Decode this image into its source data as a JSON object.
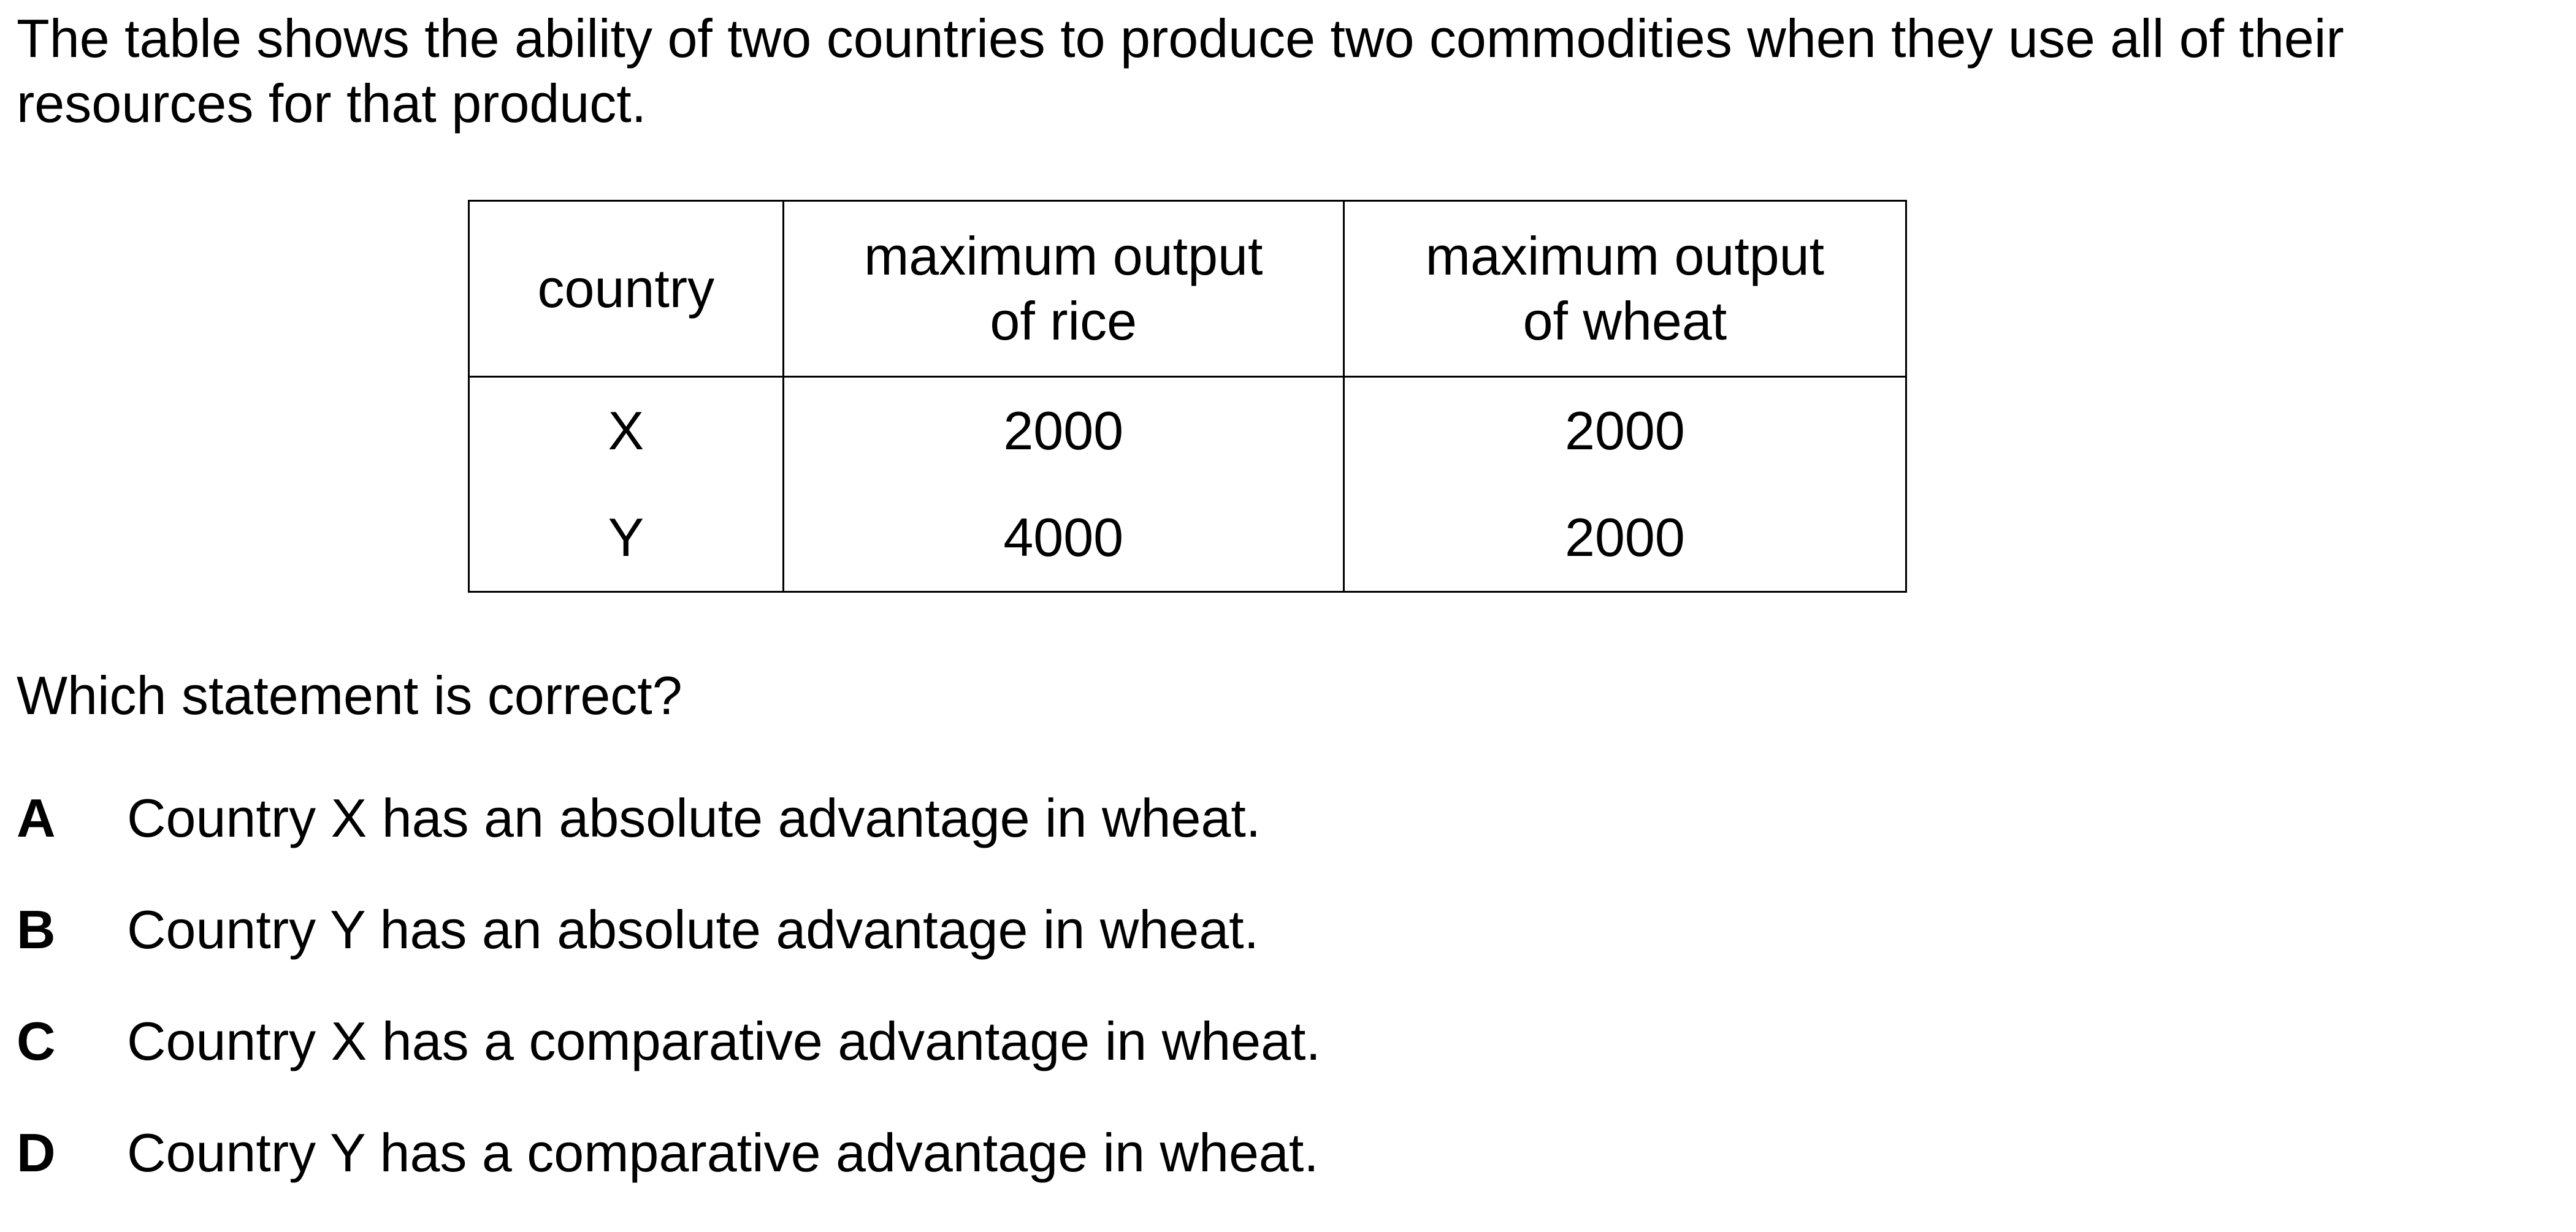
{
  "intro_text": "The table shows the ability of two countries to produce two commodities when they use all of their resources for that product.",
  "table": {
    "headers": {
      "country": "country",
      "rice_line1": "maximum output",
      "rice_line2": "of rice",
      "wheat_line1": "maximum output",
      "wheat_line2": "of wheat"
    },
    "rows": [
      {
        "country": "X",
        "rice": "2000",
        "wheat": "2000"
      },
      {
        "country": "Y",
        "rice": "4000",
        "wheat": "2000"
      }
    ]
  },
  "question": "Which statement is correct?",
  "options": [
    {
      "letter": "A",
      "text": "Country X has an absolute advantage in wheat."
    },
    {
      "letter": "B",
      "text": "Country Y has an absolute advantage in wheat."
    },
    {
      "letter": "C",
      "text": "Country X has a comparative advantage in wheat."
    },
    {
      "letter": "D",
      "text": "Country Y has a comparative advantage in wheat."
    }
  ]
}
